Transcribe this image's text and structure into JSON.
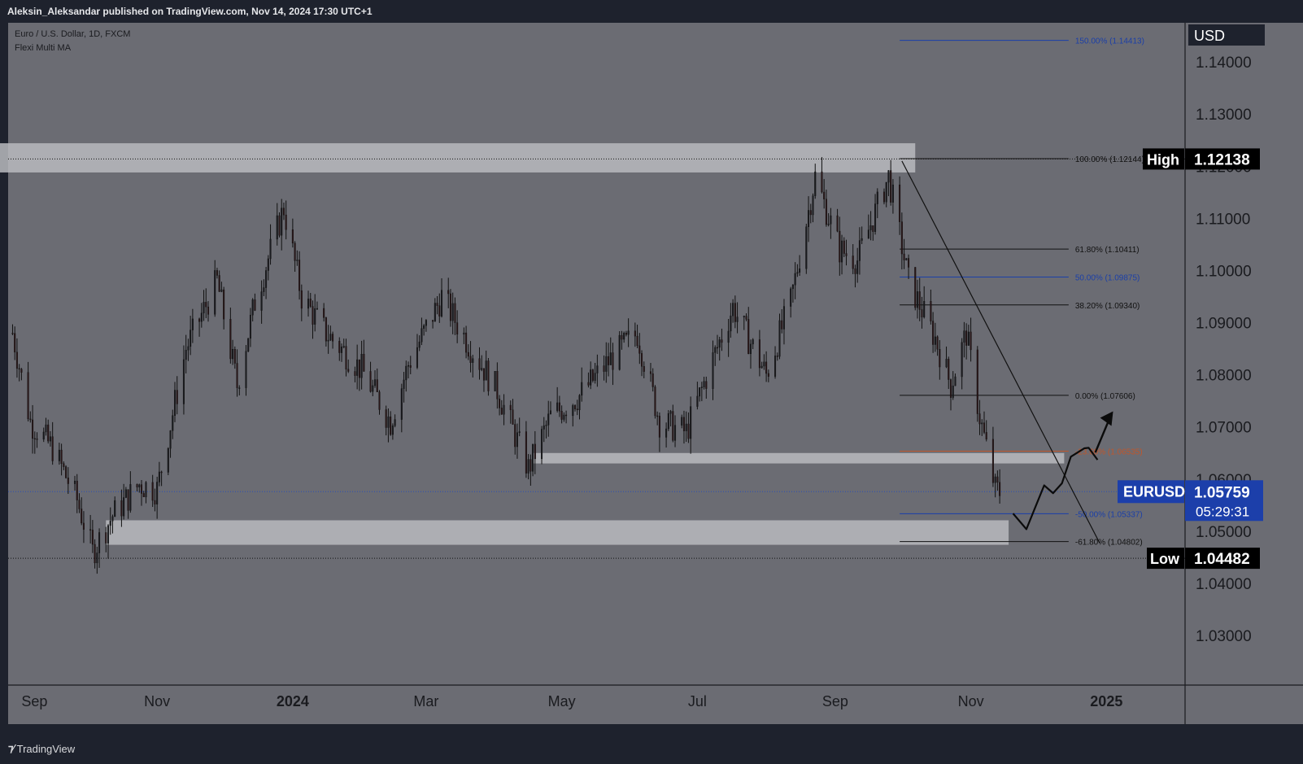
{
  "header": {
    "published_by": "Aleksin_Aleksandar published on TradingView.com, Nov 14, 2024 17:30 UTC+1"
  },
  "legend": {
    "symbol_line": "Euro / U.S. Dollar, 1D, FXCM",
    "indicator_line": "Flexi Multi MA"
  },
  "footer": {
    "brand": "TradingView",
    "brand_icon": "tradingview-logo"
  },
  "colors": {
    "background_dark": "#1e222d",
    "chart_bg": "#6b6c73",
    "candle_up": "#1a1b1f",
    "candle_down": "#2b1618",
    "zone": "#b9babe",
    "fib_black": "#111111",
    "fib_blue": "#1b3fa8",
    "fib_orange": "#c0562b",
    "eurusd_label": "#1c3faa"
  },
  "chart_data": {
    "type": "candlestick",
    "symbol": "EURUSD",
    "currency": "USD",
    "timeframe": "1D",
    "source": "FXCM",
    "ylim": [
      1.0205,
      1.1475
    ],
    "x_ticks": [
      "Sep",
      "Nov",
      "2024",
      "Mar",
      "May",
      "Jul",
      "Sep",
      "Nov",
      "2025"
    ],
    "x_tick_dates": [
      "2023-09-01",
      "2023-11-01",
      "2024-01-01",
      "2024-03-01",
      "2024-05-01",
      "2024-07-01",
      "2024-09-01",
      "2024-11-01",
      "2025-01-01"
    ],
    "y_ticks": [
      "1.14000",
      "1.13000",
      "1.12000",
      "1.11000",
      "1.10000",
      "1.09000",
      "1.08000",
      "1.07000",
      "1.06000",
      "1.05000",
      "1.04000",
      "1.03000"
    ],
    "y_tick_values": [
      1.14,
      1.13,
      1.12,
      1.11,
      1.1,
      1.09,
      1.08,
      1.07,
      1.06,
      1.05,
      1.04,
      1.03
    ],
    "price_approx_close": [
      {
        "date": "2023-08-28",
        "close": 1.088
      },
      {
        "date": "2023-09-05",
        "close": 1.071
      },
      {
        "date": "2023-09-15",
        "close": 1.066
      },
      {
        "date": "2023-09-26",
        "close": 1.056
      },
      {
        "date": "2023-10-03",
        "close": 1.046
      },
      {
        "date": "2023-10-12",
        "close": 1.053
      },
      {
        "date": "2023-10-24",
        "close": 1.059
      },
      {
        "date": "2023-11-01",
        "close": 1.058
      },
      {
        "date": "2023-11-14",
        "close": 1.085
      },
      {
        "date": "2023-11-28",
        "close": 1.098
      },
      {
        "date": "2023-12-07",
        "close": 1.078
      },
      {
        "date": "2023-12-15",
        "close": 1.094
      },
      {
        "date": "2023-12-28",
        "close": 1.112
      },
      {
        "date": "2024-01-05",
        "close": 1.095
      },
      {
        "date": "2024-01-16",
        "close": 1.088
      },
      {
        "date": "2024-02-01",
        "close": 1.081
      },
      {
        "date": "2024-02-14",
        "close": 1.071
      },
      {
        "date": "2024-02-22",
        "close": 1.082
      },
      {
        "date": "2024-03-08",
        "close": 1.095
      },
      {
        "date": "2024-03-20",
        "close": 1.086
      },
      {
        "date": "2024-04-02",
        "close": 1.077
      },
      {
        "date": "2024-04-16",
        "close": 1.062
      },
      {
        "date": "2024-04-26",
        "close": 1.072
      },
      {
        "date": "2024-05-09",
        "close": 1.076
      },
      {
        "date": "2024-05-23",
        "close": 1.083
      },
      {
        "date": "2024-06-04",
        "close": 1.088
      },
      {
        "date": "2024-06-14",
        "close": 1.071
      },
      {
        "date": "2024-06-26",
        "close": 1.069
      },
      {
        "date": "2024-07-08",
        "close": 1.083
      },
      {
        "date": "2024-07-17",
        "close": 1.093
      },
      {
        "date": "2024-08-01",
        "close": 1.08
      },
      {
        "date": "2024-08-12",
        "close": 1.094
      },
      {
        "date": "2024-08-23",
        "close": 1.118
      },
      {
        "date": "2024-09-03",
        "close": 1.104
      },
      {
        "date": "2024-09-11",
        "close": 1.102
      },
      {
        "date": "2024-09-25",
        "close": 1.118
      },
      {
        "date": "2024-10-04",
        "close": 1.098
      },
      {
        "date": "2024-10-16",
        "close": 1.087
      },
      {
        "date": "2024-10-23",
        "close": 1.078
      },
      {
        "date": "2024-10-30",
        "close": 1.088
      },
      {
        "date": "2024-11-05",
        "close": 1.072
      },
      {
        "date": "2024-11-12",
        "close": 1.058
      },
      {
        "date": "2024-11-14",
        "close": 1.0576
      }
    ],
    "current_price": {
      "symbol": "EURUSD",
      "value": "1.05759",
      "countdown": "05:29:31"
    },
    "high_marker": {
      "label": "High",
      "value": "1.12138"
    },
    "low_marker": {
      "label": "Low",
      "value": "1.04482"
    },
    "fib_levels": [
      {
        "label": "150.00% (1.14413)",
        "value": 1.14413,
        "color": "blue"
      },
      {
        "label": "100.00% (1.12144)",
        "value": 1.12144,
        "color": "black"
      },
      {
        "label": "61.80% (1.10411)",
        "value": 1.10411,
        "color": "black"
      },
      {
        "label": "50.00% (1.09875)",
        "value": 1.09875,
        "color": "blue"
      },
      {
        "label": "38.20% (1.09340)",
        "value": 1.0934,
        "color": "black"
      },
      {
        "label": "0.00% (1.07606)",
        "value": 1.07606,
        "color": "black"
      },
      {
        "label": "-23.60% (1.06535)",
        "value": 1.06535,
        "color": "orange"
      },
      {
        "label": "-50.00% (1.05337)",
        "value": 1.05337,
        "color": "blue"
      },
      {
        "label": "-61.80% (1.04802)",
        "value": 1.04802,
        "color": "black"
      }
    ],
    "zones": [
      {
        "name": "supply-zone",
        "from": "2023-08-22",
        "to": "2024-10-07",
        "low": 1.1188,
        "high": 1.1244
      },
      {
        "name": "mid-zone",
        "from": "2024-04-18",
        "to": "2024-12-13",
        "low": 1.063,
        "high": 1.065
      },
      {
        "name": "demand-zone",
        "from": "2023-10-09",
        "to": "2024-11-18",
        "low": 1.0474,
        "high": 1.0521
      }
    ],
    "trendline": {
      "from": {
        "date": "2024-10-01",
        "value": 1.121
      },
      "to": {
        "date": "2024-12-29",
        "value": 1.0477
      }
    },
    "projection_path": [
      {
        "date": "2024-11-20",
        "value": 1.0534
      },
      {
        "date": "2024-11-26",
        "value": 1.0504
      },
      {
        "date": "2024-12-04",
        "value": 1.0588
      },
      {
        "date": "2024-12-08",
        "value": 1.0573
      },
      {
        "date": "2024-12-12",
        "value": 1.0592
      },
      {
        "date": "2024-12-16",
        "value": 1.0643
      },
      {
        "date": "2024-12-22",
        "value": 1.0659
      },
      {
        "date": "2024-12-24",
        "value": 1.066
      },
      {
        "date": "2024-12-28",
        "value": 1.0637
      }
    ],
    "breakout_arrow": {
      "from": {
        "date": "2024-12-27",
        "value": 1.0651
      },
      "to": {
        "date": "2025-01-04",
        "value": 1.073
      }
    },
    "grid": false
  }
}
